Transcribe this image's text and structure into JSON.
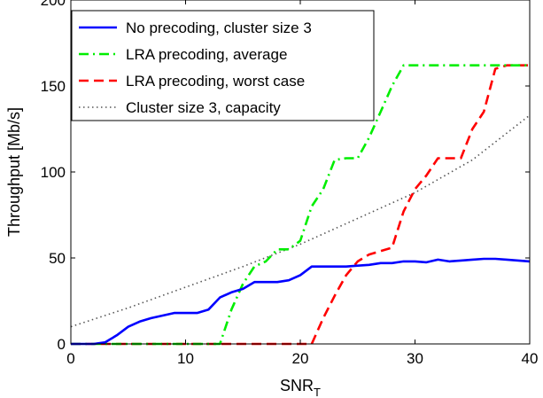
{
  "chart_data": {
    "type": "line",
    "xlabel_main": "SNR",
    "xlabel_sub": "T",
    "ylabel": "Throughput [Mb/s]",
    "xlim": [
      0,
      40
    ],
    "ylim": [
      0,
      200
    ],
    "xticks": [
      "0",
      "10",
      "20",
      "30",
      "40"
    ],
    "yticks": [
      "0",
      "50",
      "100",
      "150",
      "200"
    ],
    "grid": false,
    "legend_position": "top-left",
    "series": [
      {
        "name": "No precoding, cluster size 3",
        "color": "#0000ff",
        "style": "solid",
        "x": [
          0,
          1,
          2,
          3,
          4,
          5,
          6,
          7,
          8,
          9,
          10,
          11,
          12,
          13,
          14,
          15,
          16,
          17,
          18,
          19,
          20,
          21,
          22,
          23,
          24,
          25,
          26,
          27,
          28,
          29,
          30,
          31,
          32,
          33,
          34,
          35,
          36,
          37,
          38,
          39,
          40
        ],
        "y": [
          0,
          0,
          0,
          1,
          5,
          10,
          13,
          15,
          16.5,
          18,
          18,
          18,
          20,
          27,
          30,
          32,
          36,
          36,
          36,
          37,
          40,
          45,
          45,
          45,
          45,
          45.5,
          46,
          47,
          47,
          48,
          48,
          47.5,
          49,
          48,
          48.5,
          49,
          49.5,
          49.5,
          49,
          48.5,
          48
        ]
      },
      {
        "name": "LRA precoding, average",
        "color": "#00ee00",
        "style": "dashdot",
        "x": [
          0,
          1,
          2,
          3,
          4,
          5,
          6,
          7,
          8,
          9,
          10,
          11,
          12,
          13,
          14,
          15,
          16,
          17,
          18,
          19,
          20,
          21,
          22,
          23,
          24,
          25,
          26,
          27,
          28,
          29,
          30,
          31,
          32,
          33,
          34,
          35,
          36,
          37,
          38,
          39,
          40
        ],
        "y": [
          0,
          0,
          0,
          0,
          0,
          0,
          0,
          0,
          0,
          0,
          0,
          0,
          0,
          0,
          20,
          35,
          45,
          48,
          55,
          55,
          60,
          80,
          90,
          107,
          108,
          108,
          120,
          135,
          150,
          162,
          162,
          162,
          162,
          162,
          162,
          162,
          162,
          162,
          162,
          162,
          162
        ]
      },
      {
        "name": "LRA precoding, worst case",
        "color": "#ff0000",
        "style": "dashed",
        "x": [
          0,
          1,
          2,
          3,
          4,
          5,
          6,
          7,
          8,
          9,
          10,
          11,
          12,
          13,
          14,
          15,
          16,
          17,
          18,
          19,
          20,
          21,
          22,
          23,
          24,
          25,
          26,
          27,
          28,
          29,
          30,
          31,
          32,
          33,
          34,
          35,
          36,
          37,
          38,
          39,
          40
        ],
        "y": [
          0,
          0,
          0,
          0,
          0,
          0,
          0,
          0,
          0,
          0,
          0,
          0,
          0,
          0,
          0,
          0,
          0,
          0,
          0,
          0,
          0,
          0,
          15,
          28,
          40,
          48,
          52,
          54,
          56,
          77,
          90,
          98,
          108,
          108,
          108,
          125,
          135,
          160,
          162,
          162,
          162
        ]
      },
      {
        "name": "Cluster size 3, capacity",
        "color": "#555555",
        "style": "dotted",
        "x": [
          0,
          5,
          10,
          15,
          20,
          25,
          30,
          35,
          40
        ],
        "y": [
          10,
          21,
          33,
          45,
          58,
          73,
          88,
          107,
          133
        ]
      }
    ]
  }
}
